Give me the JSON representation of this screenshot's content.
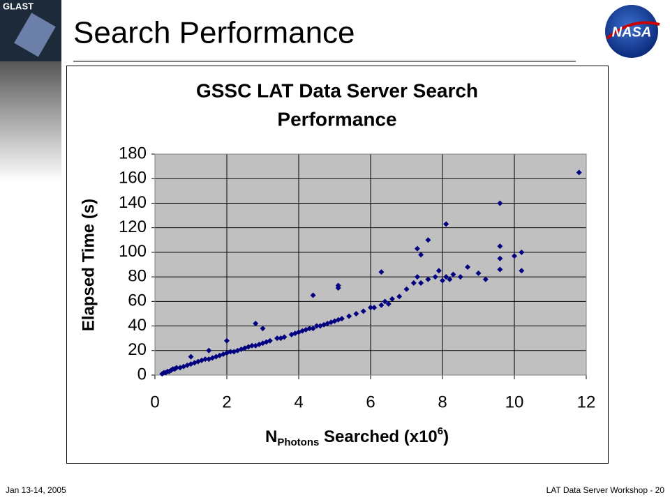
{
  "slide": {
    "title": "Search Performance",
    "footer_left": "Jan 13-14, 2005",
    "footer_right": "LAT Data Server Workshop - 20",
    "logo_left": "GLAST",
    "logo_right": "NASA"
  },
  "chart_data": {
    "type": "scatter",
    "title": [
      "GSSC LAT Data Server Search",
      "Performance"
    ],
    "xlabel": [
      "N",
      "Photons",
      " Searched (x10",
      "6",
      ")"
    ],
    "ylabel": "Elapsed Time (s)",
    "color": "#000080",
    "grid": true,
    "background": "#c0c0c0",
    "xlim": [
      0,
      12
    ],
    "xticks": [
      0,
      2,
      4,
      6,
      8,
      10,
      12
    ],
    "ylim": [
      0,
      180
    ],
    "yticks": [
      0,
      20,
      40,
      60,
      80,
      100,
      120,
      140,
      160,
      180
    ],
    "x": [
      0.2,
      0.25,
      0.3,
      0.35,
      0.4,
      0.45,
      0.5,
      0.55,
      0.6,
      0.7,
      0.8,
      0.9,
      1.0,
      1.1,
      1.2,
      1.3,
      1.4,
      1.5,
      1.6,
      1.7,
      1.8,
      1.9,
      2.0,
      2.1,
      2.2,
      2.3,
      2.4,
      2.5,
      2.6,
      2.7,
      2.8,
      2.9,
      3.0,
      3.1,
      3.2,
      3.4,
      3.5,
      3.6,
      3.8,
      3.9,
      4.0,
      4.1,
      4.2,
      4.3,
      4.4,
      4.5,
      4.6,
      4.7,
      4.8,
      4.9,
      5.0,
      5.1,
      5.2,
      5.4,
      5.6,
      5.8,
      6.0,
      6.1,
      6.3,
      6.4,
      6.5,
      6.6,
      6.8,
      7.0,
      7.2,
      7.3,
      7.4,
      7.6,
      7.8,
      7.9,
      8.0,
      8.1,
      8.2,
      8.3,
      8.5,
      8.7,
      9.0,
      9.2,
      9.6,
      9.6,
      9.6,
      10.0,
      10.2,
      10.2,
      11.8,
      1.0,
      1.5,
      2.0,
      2.8,
      3.0,
      4.4,
      5.1,
      5.1,
      6.3,
      7.3,
      7.4,
      7.6,
      8.1,
      9.6
    ],
    "values": [
      1,
      2,
      2,
      3,
      3,
      4,
      5,
      5,
      6,
      6,
      7,
      8,
      9,
      10,
      11,
      12,
      13,
      13,
      14,
      15,
      16,
      17,
      18,
      19,
      19,
      20,
      21,
      22,
      23,
      24,
      24,
      25,
      26,
      27,
      28,
      30,
      30,
      31,
      33,
      34,
      35,
      36,
      37,
      38,
      38,
      40,
      40,
      41,
      42,
      43,
      44,
      45,
      46,
      48,
      50,
      52,
      55,
      55,
      57,
      60,
      58,
      62,
      64,
      70,
      75,
      80,
      75,
      78,
      80,
      85,
      77,
      80,
      78,
      82,
      80,
      88,
      83,
      78,
      95,
      105,
      86,
      97,
      100,
      85,
      165,
      15,
      20,
      28,
      42,
      38,
      65,
      73,
      71,
      84,
      103,
      98,
      110,
      123,
      140
    ]
  }
}
